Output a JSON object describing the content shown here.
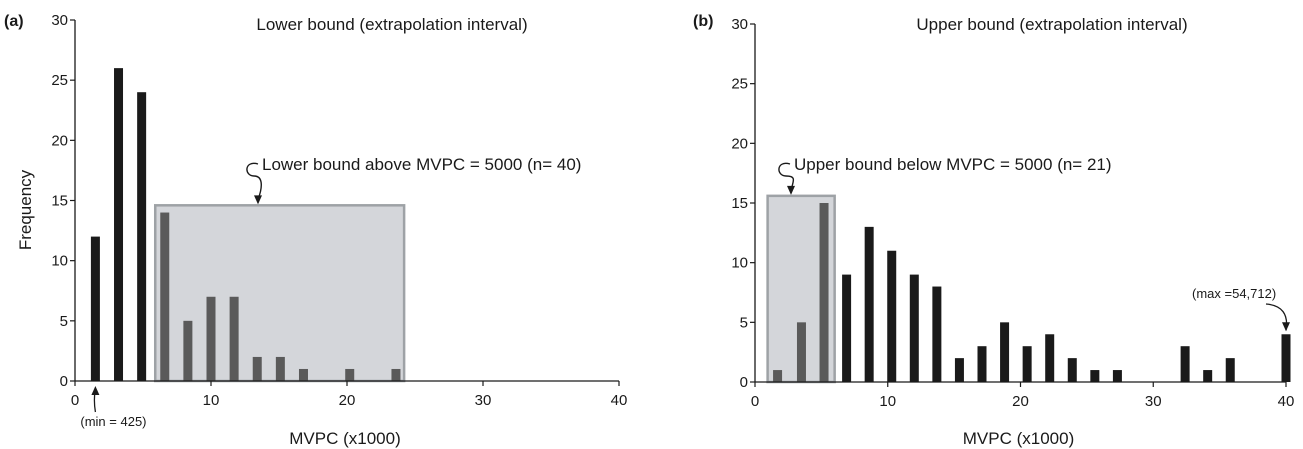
{
  "chart_data": [
    {
      "type": "bar",
      "panel_label": "(a)",
      "title": "Lower bound (extrapolation interval)",
      "xlabel": "MVPC (x1000)",
      "ylabel": "Frequency",
      "xlim": [
        0,
        40
      ],
      "ylim": [
        0,
        30
      ],
      "xticks": [
        0,
        10,
        20,
        30,
        40
      ],
      "yticks": [
        0,
        5,
        10,
        15,
        20,
        25,
        30
      ],
      "grid": false,
      "bars": [
        {
          "x": 1.5,
          "value": 12,
          "highlighted": false
        },
        {
          "x": 3.2,
          "value": 26,
          "highlighted": false
        },
        {
          "x": 4.9,
          "value": 24,
          "highlighted": false
        },
        {
          "x": 6.6,
          "value": 14,
          "highlighted": true
        },
        {
          "x": 8.3,
          "value": 5,
          "highlighted": true
        },
        {
          "x": 10.0,
          "value": 7,
          "highlighted": true
        },
        {
          "x": 11.7,
          "value": 7,
          "highlighted": true
        },
        {
          "x": 13.4,
          "value": 2,
          "highlighted": true
        },
        {
          "x": 15.1,
          "value": 2,
          "highlighted": true
        },
        {
          "x": 16.8,
          "value": 1,
          "highlighted": true
        },
        {
          "x": 20.2,
          "value": 1,
          "highlighted": true
        },
        {
          "x": 23.6,
          "value": 1,
          "highlighted": true
        }
      ],
      "highlight_box": {
        "x_range": [
          5.9,
          24.2
        ],
        "y_top": 14.6
      },
      "box_annotation": "Lower bound above MVPC = 5000 (n= 40)",
      "point_annotation": {
        "text": "(min = 425)",
        "x": 1.5
      }
    },
    {
      "type": "bar",
      "panel_label": "(b)",
      "title": "Upper bound (extrapolation interval)",
      "xlabel": "MVPC (x1000)",
      "ylabel": "",
      "xlim": [
        0,
        40
      ],
      "ylim": [
        0,
        30
      ],
      "xticks": [
        0,
        10,
        20,
        30,
        40
      ],
      "yticks": [
        0,
        5,
        10,
        15,
        20,
        25,
        30
      ],
      "grid": false,
      "bars": [
        {
          "x": 1.7,
          "value": 1,
          "highlighted": true
        },
        {
          "x": 3.5,
          "value": 5,
          "highlighted": true
        },
        {
          "x": 5.2,
          "value": 15,
          "highlighted": true
        },
        {
          "x": 6.9,
          "value": 9,
          "highlighted": false
        },
        {
          "x": 8.6,
          "value": 13,
          "highlighted": false
        },
        {
          "x": 10.3,
          "value": 11,
          "highlighted": false
        },
        {
          "x": 12.0,
          "value": 9,
          "highlighted": false
        },
        {
          "x": 13.7,
          "value": 8,
          "highlighted": false
        },
        {
          "x": 15.4,
          "value": 2,
          "highlighted": false
        },
        {
          "x": 17.1,
          "value": 3,
          "highlighted": false
        },
        {
          "x": 18.8,
          "value": 5,
          "highlighted": false
        },
        {
          "x": 20.5,
          "value": 3,
          "highlighted": false
        },
        {
          "x": 22.2,
          "value": 4,
          "highlighted": false
        },
        {
          "x": 23.9,
          "value": 2,
          "highlighted": false
        },
        {
          "x": 25.6,
          "value": 1,
          "highlighted": false
        },
        {
          "x": 27.3,
          "value": 1,
          "highlighted": false
        },
        {
          "x": 32.4,
          "value": 3,
          "highlighted": false
        },
        {
          "x": 34.1,
          "value": 1,
          "highlighted": false
        },
        {
          "x": 35.8,
          "value": 2,
          "highlighted": false
        },
        {
          "x": 40.0,
          "value": 4,
          "highlighted": false
        }
      ],
      "highlight_box": {
        "x_range": [
          0.95,
          6.0
        ],
        "y_top": 15.6
      },
      "box_annotation": "Upper bound below MVPC = 5000 (n= 21)",
      "point_annotation": {
        "text": "(max =54,712)",
        "x": 40.0
      }
    }
  ],
  "colors": {
    "bar": "#1a1a1a",
    "bar_highlighted": "#5a5a5a",
    "box_fill": "#d4d6da",
    "box_stroke": "#9ea2a6",
    "axis": "#1a1a1a",
    "text": "#1a1a1a"
  }
}
